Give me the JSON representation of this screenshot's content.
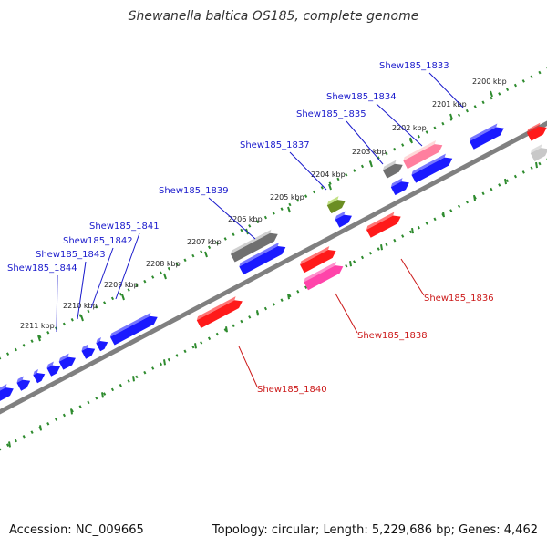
{
  "title": "Shewanella baltica OS185, complete genome",
  "footer": {
    "accession": "Accession: NC_009665",
    "stats": "Topology: circular; Length: 5,229,686 bp; Genes: 4,462"
  },
  "colors": {
    "forward_gene": "#1a1aff",
    "reverse_gene": "#ff1a1a",
    "pink_gene": "#ff44aa",
    "grey_gene": "#707070",
    "olive_gene": "#6b8e23",
    "backbone": "#808080",
    "scale_dots": "#2e8b2e",
    "forward_label": "#1a1acc",
    "reverse_label": "#cc1a1a"
  },
  "kbp_ticks": [
    "2200 kbp",
    "2201 kbp",
    "2202 kbp",
    "2203 kbp",
    "2204 kbp",
    "2205 kbp",
    "2206 kbp",
    "2207 kbp",
    "2208 kbp",
    "2209 kbp",
    "2210 kbp",
    "2211 kbp"
  ],
  "forward_labels": [
    "Shew185_1833",
    "Shew185_1834",
    "Shew185_1835",
    "Shew185_1837",
    "Shew185_1839",
    "Shew185_1841",
    "Shew185_1842",
    "Shew185_1843",
    "Shew185_1844"
  ],
  "reverse_labels": [
    "Shew185_1836",
    "Shew185_1838",
    "Shew185_1840"
  ]
}
